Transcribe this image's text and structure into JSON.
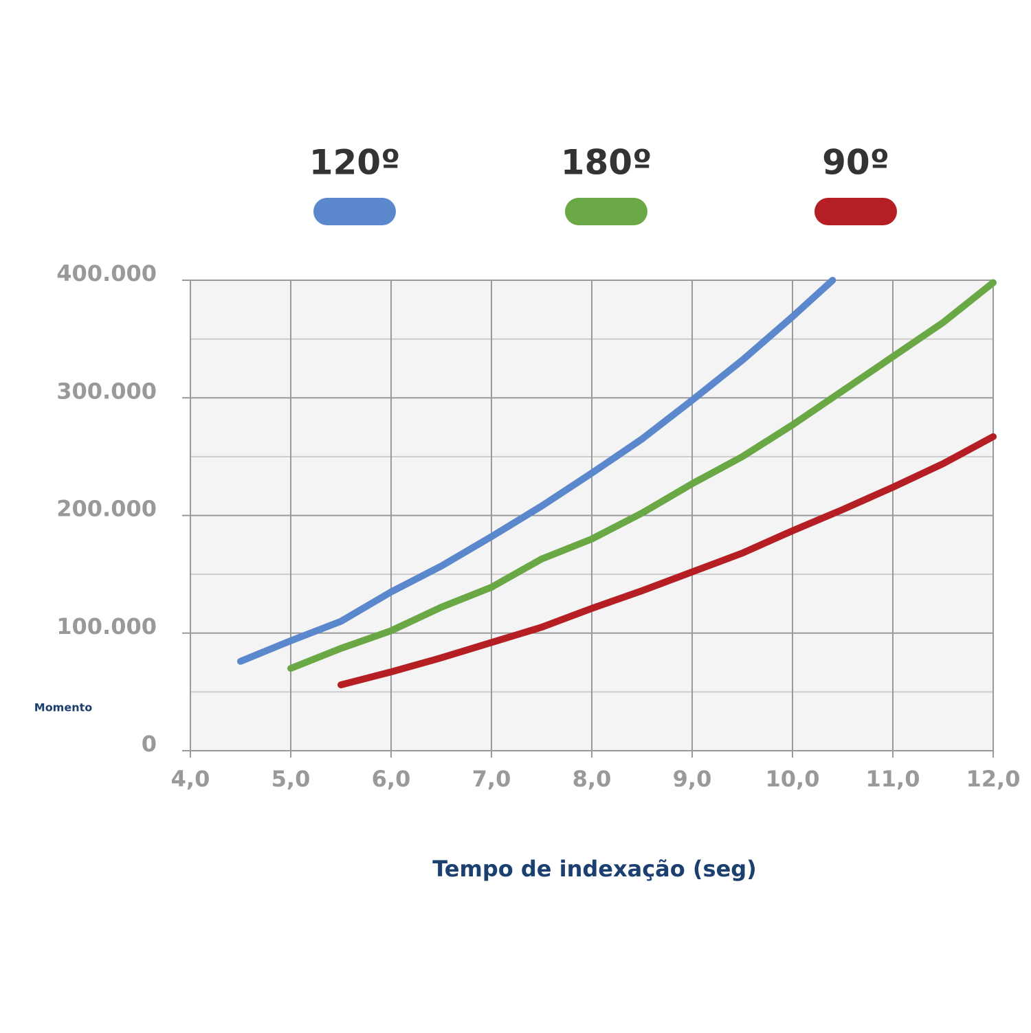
{
  "chart_data": {
    "type": "line",
    "x_label": "Tempo de indexação (seg)",
    "y_label": "Momento",
    "xlim": [
      4,
      12
    ],
    "xticks": [
      {
        "value": 4,
        "label": "4,0"
      },
      {
        "value": 5,
        "label": "5,0"
      },
      {
        "value": 6,
        "label": "6,0"
      },
      {
        "value": 7,
        "label": "7,0"
      },
      {
        "value": 8,
        "label": "8,0"
      },
      {
        "value": 9,
        "label": "9,0"
      },
      {
        "value": 10,
        "label": "10,0"
      },
      {
        "value": 11,
        "label": "11,0"
      },
      {
        "value": 12,
        "label": "12,0"
      }
    ],
    "ylim": [
      0,
      400000
    ],
    "yticks": [
      0,
      {
        "value": 100000,
        "label": "100.000"
      },
      {
        "value": 200000,
        "label": "200.000"
      },
      {
        "value": 300000,
        "label": "300.000"
      },
      {
        "value": 400000,
        "label": "400.000"
      }
    ],
    "yticks_minor": [
      50000,
      150000,
      250000,
      350000
    ],
    "grid": true,
    "legend": "top",
    "series": [
      {
        "name": "120º",
        "color": "#5b87cc",
        "x": [
          4.5,
          5.0,
          5.5,
          6.0,
          6.5,
          7.0,
          7.5,
          8.0,
          8.5,
          9.0,
          9.5,
          10.0,
          10.4
        ],
        "values": [
          76000,
          93500,
          110000,
          135000,
          157000,
          182000,
          208000,
          236000,
          265000,
          298000,
          332000,
          369000,
          400000
        ]
      },
      {
        "name": "180º",
        "color": "#6aa845",
        "x": [
          5.0,
          5.5,
          6.0,
          6.5,
          7.0,
          7.5,
          8.0,
          8.5,
          9.0,
          9.5,
          10.0,
          10.5,
          11.0,
          11.5,
          12.0
        ],
        "values": [
          70000,
          87000,
          102000,
          122000,
          139000,
          163000,
          180000,
          202000,
          227000,
          250000,
          277000,
          306000,
          335000,
          364000,
          398000
        ]
      },
      {
        "name": "90º",
        "color": "#b51f24",
        "x": [
          5.5,
          6.0,
          6.5,
          7.0,
          7.5,
          8.0,
          8.5,
          9.0,
          9.5,
          10.0,
          10.5,
          11.0,
          11.5,
          12.0
        ],
        "values": [
          56000,
          67000,
          79000,
          92000,
          105000,
          121000,
          136000,
          152000,
          168000,
          187000,
          205000,
          224000,
          244000,
          267000
        ]
      }
    ]
  }
}
